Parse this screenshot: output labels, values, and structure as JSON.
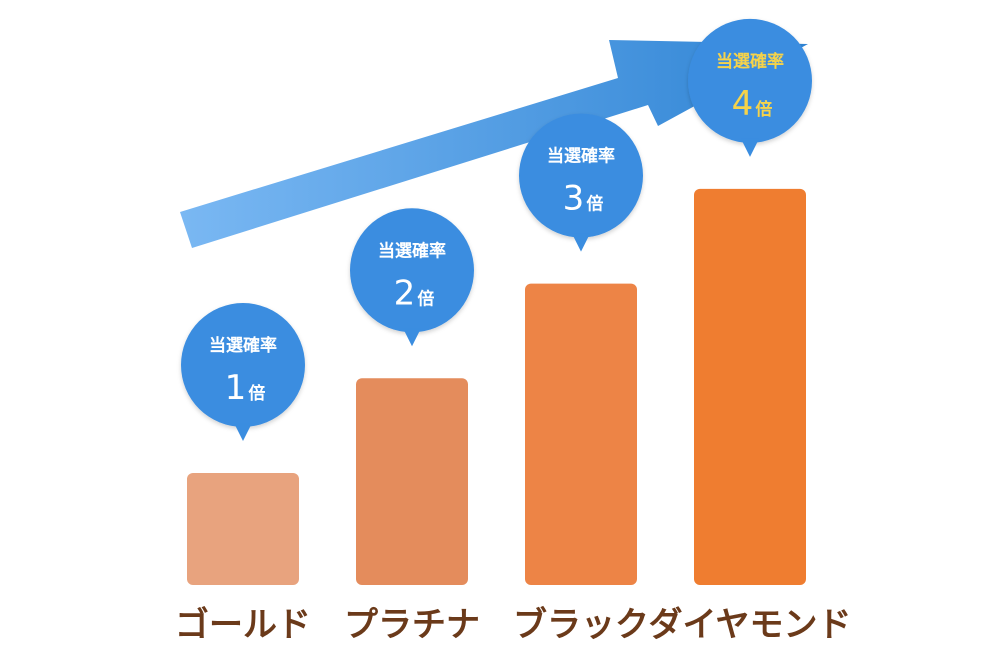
{
  "chart_data": {
    "type": "bar",
    "categories": [
      "ゴールド",
      "プラチナ",
      "ブラック",
      "ダイヤモンド"
    ],
    "values": [
      1,
      2,
      3,
      4
    ],
    "bubble_title": "当選確率",
    "value_unit": "倍",
    "bar_colors": [
      "#e8a37e",
      "#e48c5c",
      "#ed8446",
      "#ef7d30"
    ],
    "bubble_color": "#3a8de0",
    "highlight_text_color": "#f6d34a",
    "label_color": "#6b3a1a",
    "arrow_gradient": [
      "#7ab8f3",
      "#2f84d4"
    ],
    "ylim": [
      0,
      4
    ]
  }
}
